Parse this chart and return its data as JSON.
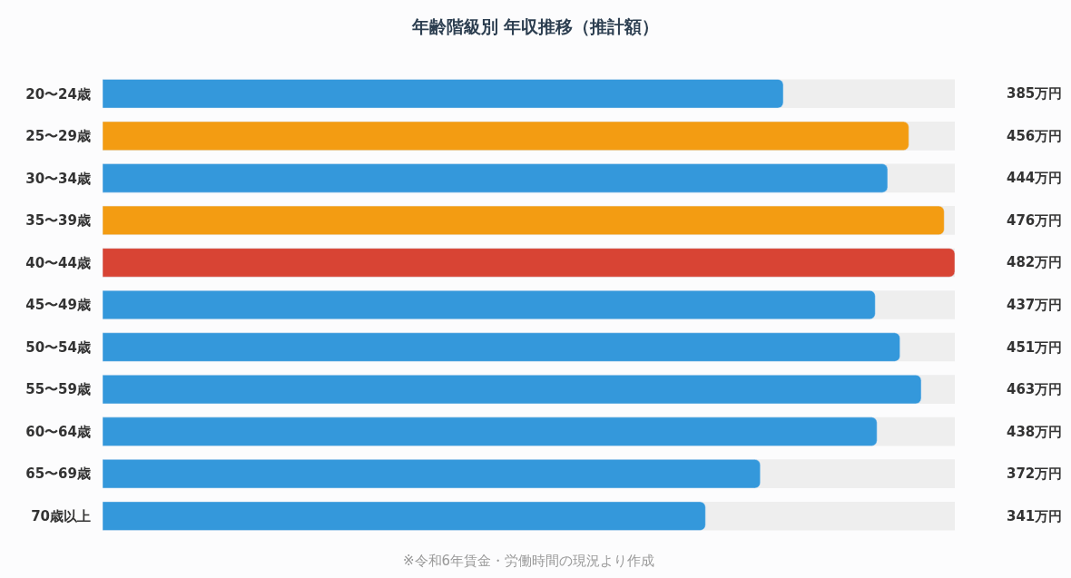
{
  "chart_data": {
    "type": "bar",
    "orientation": "horizontal",
    "title": "年齢階級別 年収推移（推計額）",
    "categories": [
      "20〜24歳",
      "25〜29歳",
      "30〜34歳",
      "35〜39歳",
      "40〜44歳",
      "45〜49歳",
      "50〜54歳",
      "55〜59歳",
      "60〜64歳",
      "65〜69歳",
      "70歳以上"
    ],
    "values": [
      385,
      456,
      444,
      476,
      482,
      437,
      451,
      463,
      438,
      372,
      341
    ],
    "colors": [
      "#3498db",
      "#f39c12",
      "#3498db",
      "#f39c12",
      "#d84434",
      "#3498db",
      "#3498db",
      "#3498db",
      "#3498db",
      "#3498db",
      "#3498db"
    ],
    "value_labels": [
      "385万円",
      "456万円",
      "444万円",
      "476万円",
      "482万円",
      "437万円",
      "451万円",
      "463万円",
      "438万円",
      "372万円",
      "341万円"
    ],
    "xlim": [
      0,
      482
    ],
    "tick_labels": "y",
    "grid": false,
    "legend": false,
    "annotations": [
      "※令和6年賃金・労働時間の現況より作成"
    ]
  }
}
